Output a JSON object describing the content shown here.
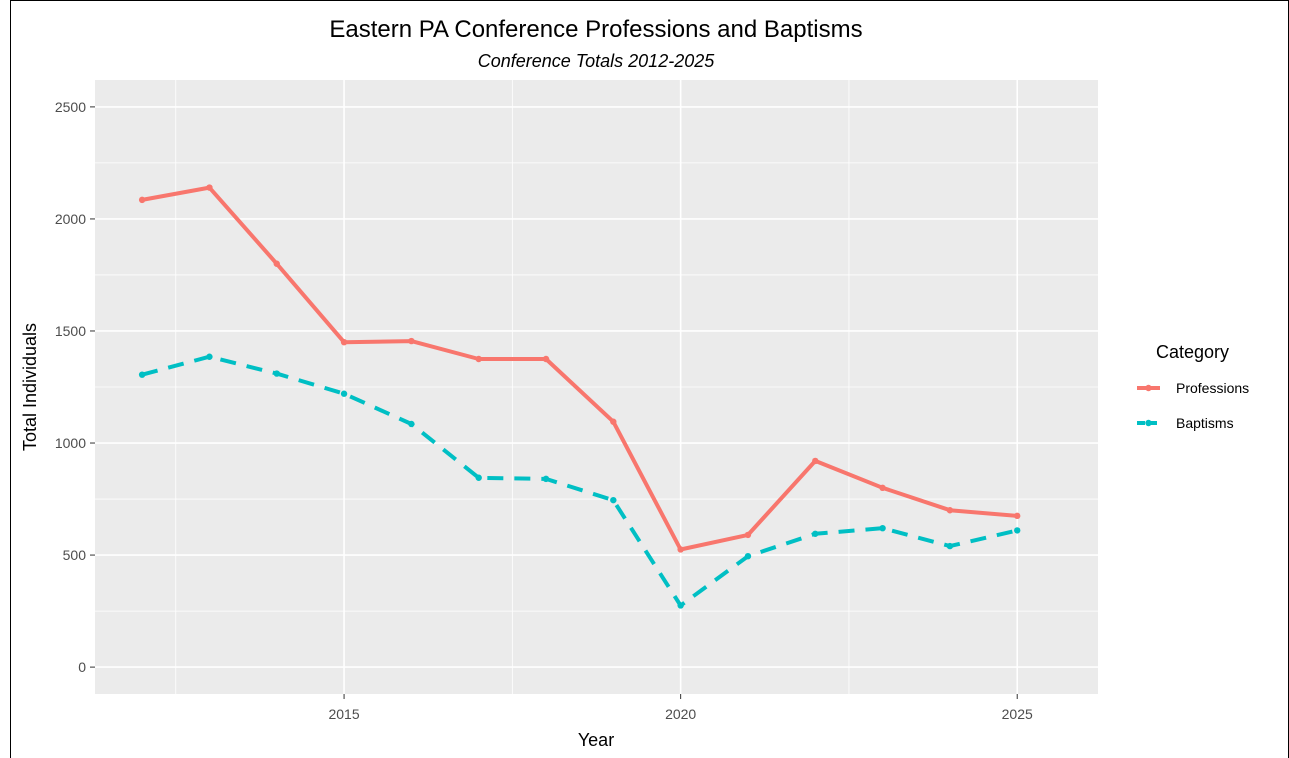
{
  "chart_data": {
    "type": "line",
    "title": "Eastern PA Conference Professions and Baptisms",
    "subtitle": "Conference Totals 2012-2025",
    "xlabel": "Year",
    "ylabel": "Total Individuals",
    "x": [
      2012,
      2013,
      2014,
      2015,
      2016,
      2017,
      2018,
      2019,
      2020,
      2021,
      2022,
      2023,
      2024,
      2025
    ],
    "xlim": [
      2011.3,
      2026.2
    ],
    "ylim": [
      -120,
      2620
    ],
    "xticks": [
      2015,
      2020,
      2025
    ],
    "yticks": [
      0,
      500,
      1000,
      1500,
      2000,
      2500
    ],
    "grid": true,
    "legend": {
      "title": "Category",
      "position": "right"
    },
    "series": [
      {
        "name": "Professions",
        "color": "#F8766D",
        "linestyle": "solid",
        "values": [
          2085,
          2140,
          1800,
          1450,
          1455,
          1375,
          1375,
          1095,
          525,
          590,
          920,
          800,
          700,
          675
        ]
      },
      {
        "name": "Baptisms",
        "color": "#00BFC4",
        "linestyle": "dashed",
        "values": [
          1305,
          1385,
          1310,
          1220,
          1085,
          845,
          840,
          745,
          275,
          495,
          595,
          620,
          540,
          610
        ]
      }
    ]
  }
}
